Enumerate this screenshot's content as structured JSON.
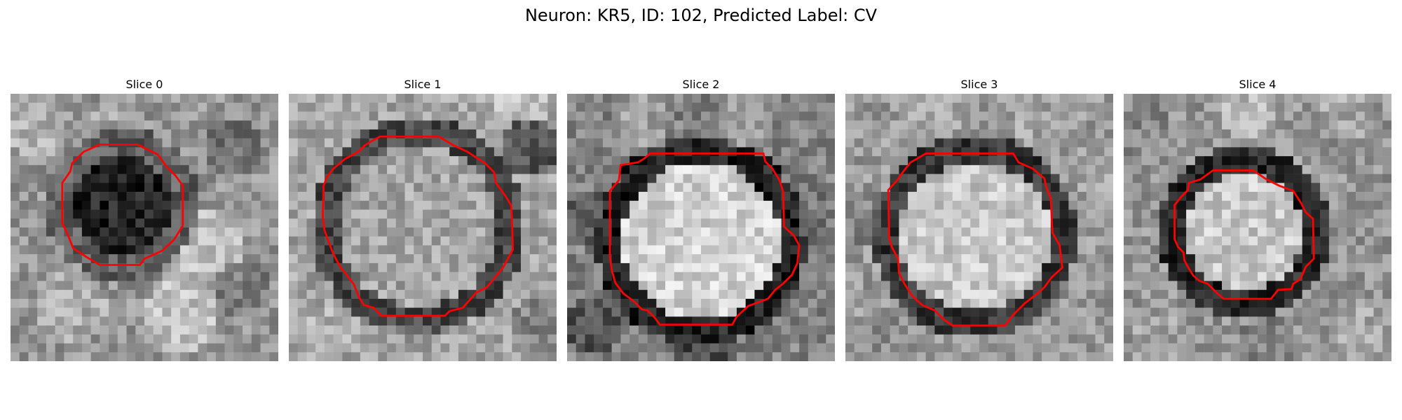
{
  "figure": {
    "title": "Neuron: KR5, ID: 102, Predicted Label: CV"
  },
  "panels": [
    {
      "title": "Slice 0",
      "center_tone": "dark"
    },
    {
      "title": "Slice 1",
      "center_tone": "medium-bright"
    },
    {
      "title": "Slice 2",
      "center_tone": "bright"
    },
    {
      "title": "Slice 3",
      "center_tone": "bright"
    },
    {
      "title": "Slice 4",
      "center_tone": "bright"
    }
  ],
  "colors": {
    "contour": "#ff0000",
    "background": "#ffffff"
  }
}
